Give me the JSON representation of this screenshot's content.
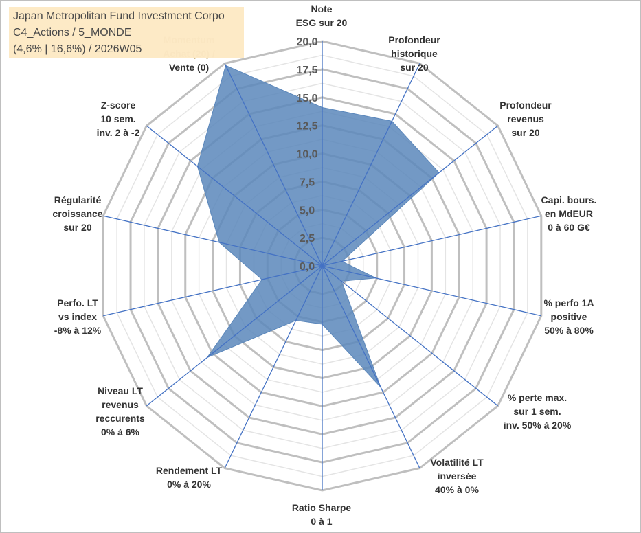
{
  "title_box": {
    "line1": "Japan Metropolitan Fund Investment Corpo",
    "line2": "C4_Actions / 5_MONDE",
    "line3": "(4,6% | 16,6%) / 2026W05"
  },
  "colors": {
    "fill": "#5b87bb",
    "stroke": "#4472c4",
    "grid": "#bfbfbf",
    "box": "#fde9c4",
    "faded_label": "#c9b78c"
  },
  "chart_data": {
    "type": "radar",
    "rmin": 0,
    "rmax": 20,
    "tick_step": 2.5,
    "tick_labels": [
      "0,0",
      "2,5",
      "5,0",
      "7,5",
      "10,0",
      "12,5",
      "15,0",
      "17,5",
      "20,0"
    ],
    "axes": [
      {
        "label": [
          "Note",
          "ESG sur 20"
        ],
        "value": 14.1
      },
      {
        "label": [
          "Profondeur",
          "historique",
          "sur 20"
        ],
        "value": 14.3
      },
      {
        "label": [
          "Profondeur",
          "revenus",
          "sur 20"
        ],
        "value": 13.3
      },
      {
        "label": [
          "Capi. bours.",
          "en MdEUR",
          "0 à 60 G€"
        ],
        "value": 1.8
      },
      {
        "label": [
          "% perfo 1A",
          "positive",
          "50% à 80%"
        ],
        "value": 4.9
      },
      {
        "label": [
          "% perte max.",
          "sur 1 sem.",
          "inv. 50% à 20%"
        ],
        "value": 2.2
      },
      {
        "label": [
          "Volatilité LT",
          "inversée",
          "40% à 0%"
        ],
        "value": 12.0
      },
      {
        "label": [
          "Ratio Sharpe",
          "0 à 1"
        ],
        "value": 5.2
      },
      {
        "label": [
          "Rendement LT",
          "0% à 20%"
        ],
        "value": 5.4
      },
      {
        "label": [
          "Niveau LT",
          "revenus",
          "reccurents",
          "0% à 6%"
        ],
        "value": 13.1
      },
      {
        "label": [
          "Perfo. LT",
          "vs index",
          "-8% à 12%"
        ],
        "value": 5.5
      },
      {
        "label": [
          "Régularité",
          "croissance",
          "sur 20"
        ],
        "value": 9.4
      },
      {
        "label": [
          "Z-score",
          "10 sem.",
          "inv. 2 à -2"
        ],
        "value": 14.2
      },
      {
        "label": [
          "Momentum",
          "Achat (20) /",
          "Vente (0)"
        ],
        "value": 19.8
      }
    ]
  }
}
